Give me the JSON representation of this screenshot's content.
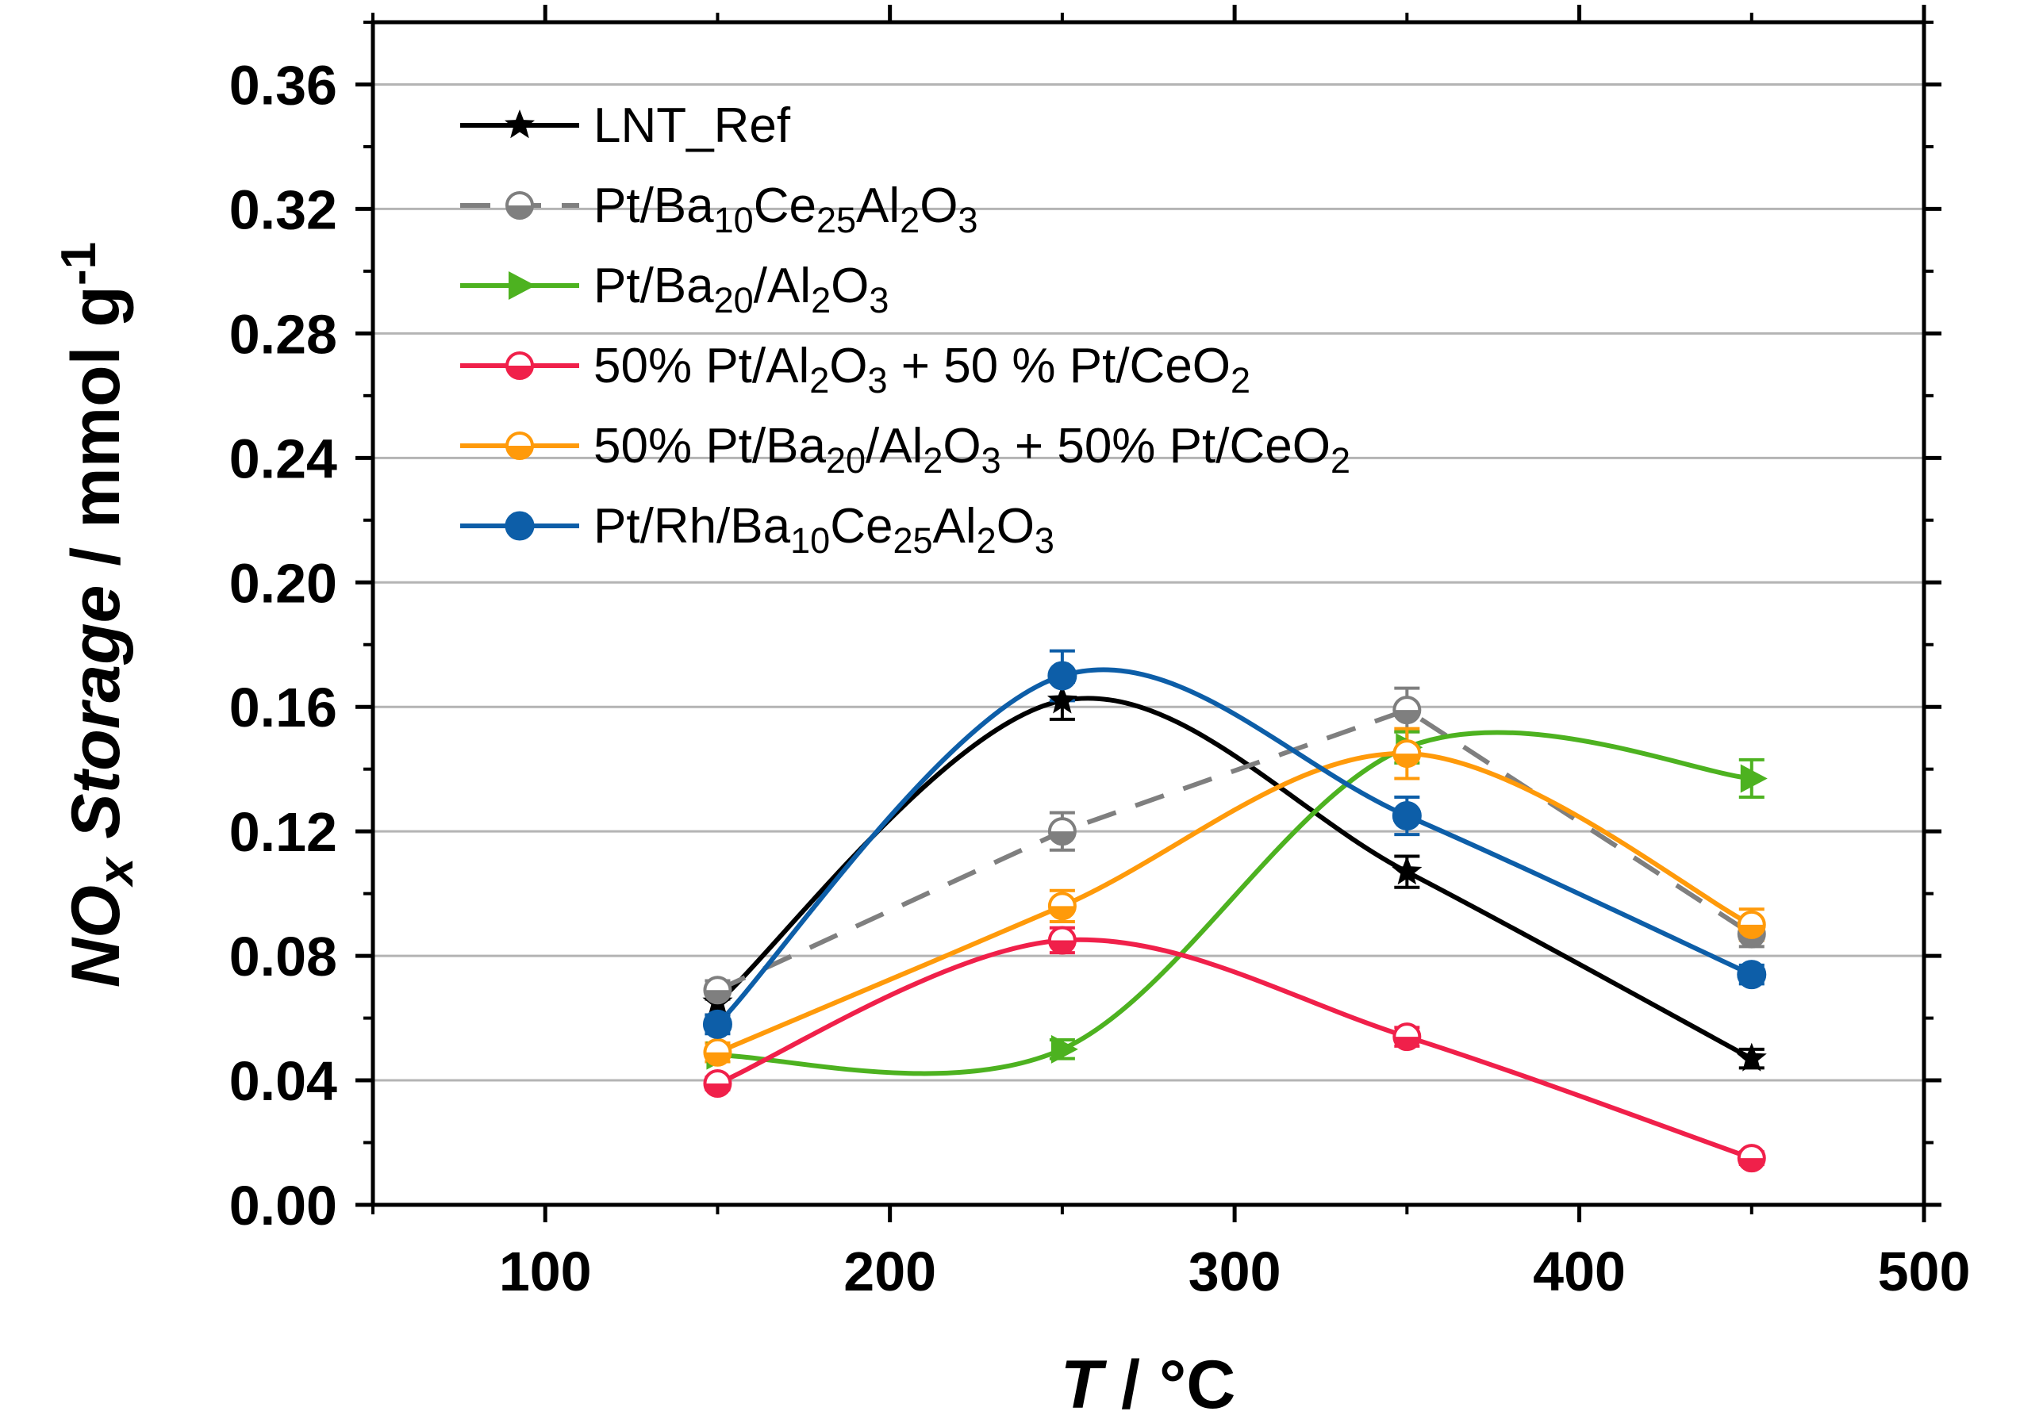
{
  "chart_data": {
    "type": "line",
    "title": "",
    "xlabel": "T / °C",
    "ylabel": "NOx Storage / mmol g-1",
    "xlim": [
      50,
      500
    ],
    "ylim": [
      0.0,
      0.38
    ],
    "xticks": [
      "100",
      "200",
      "300",
      "400",
      "500"
    ],
    "yticks": [
      "0.00",
      "0.04",
      "0.08",
      "0.12",
      "0.16",
      "0.20",
      "0.24",
      "0.28",
      "0.32",
      "0.36"
    ],
    "grid": "horizontal",
    "legend_position": "top-left",
    "series": [
      {
        "name": "LNT_Ref",
        "color": "#000000",
        "marker": "star",
        "dashed": false,
        "x": [
          150,
          250,
          350,
          450
        ],
        "y": [
          0.065,
          0.162,
          0.107,
          0.047
        ],
        "err": [
          0.004,
          0.006,
          0.005,
          0.003
        ]
      },
      {
        "name": "Pt/Ba10Ce25Al2O3",
        "color": "#7f7f7f",
        "marker": "half-circle",
        "dashed": true,
        "x": [
          150,
          250,
          350,
          450
        ],
        "y": [
          0.069,
          0.12,
          0.159,
          0.087
        ],
        "err": [
          0.003,
          0.006,
          0.007,
          0.004
        ]
      },
      {
        "name": "Pt/Ba20/Al2O3",
        "color": "#4db220",
        "marker": "triangle-right",
        "dashed": false,
        "x": [
          150,
          250,
          350,
          450
        ],
        "y": [
          0.048,
          0.05,
          0.147,
          0.137
        ],
        "err": [
          0.002,
          0.003,
          0.005,
          0.006
        ]
      },
      {
        "name": "50% Pt/Al2O3 + 50 % Pt/CeO2",
        "color": "#f0204a",
        "marker": "half-circle",
        "dashed": false,
        "x": [
          150,
          250,
          350,
          450
        ],
        "y": [
          0.039,
          0.085,
          0.054,
          0.015
        ],
        "err": [
          0.002,
          0.004,
          0.003,
          0.002
        ]
      },
      {
        "name": "50% Pt/Ba20/Al2O3 + 50% Pt/CeO2",
        "color": "#ff9a0a",
        "marker": "half-circle",
        "dashed": false,
        "x": [
          150,
          250,
          350,
          450
        ],
        "y": [
          0.049,
          0.096,
          0.145,
          0.09
        ],
        "err": [
          0.003,
          0.005,
          0.008,
          0.005
        ]
      },
      {
        "name": "Pt/Rh/Ba10Ce25Al2O3",
        "color": "#0d5ea8",
        "marker": "circle",
        "dashed": false,
        "x": [
          150,
          250,
          350,
          450
        ],
        "y": [
          0.058,
          0.17,
          0.125,
          0.074
        ],
        "err": [
          0.003,
          0.008,
          0.006,
          0.003
        ]
      }
    ],
    "legend": [
      {
        "base": "LNT_Ref",
        "parts": [
          {
            "t": "LNT_Ref"
          }
        ]
      },
      {
        "base": "Pt/Ba10Ce25Al2O3",
        "parts": [
          {
            "t": "Pt/Ba"
          },
          {
            "t": "10",
            "sub": true
          },
          {
            "t": "Ce"
          },
          {
            "t": "25",
            "sub": true
          },
          {
            "t": "Al"
          },
          {
            "t": "2",
            "sub": true
          },
          {
            "t": "O"
          },
          {
            "t": "3",
            "sub": true
          }
        ]
      },
      {
        "base": "Pt/Ba20/Al2O3",
        "parts": [
          {
            "t": "Pt/Ba"
          },
          {
            "t": "20",
            "sub": true
          },
          {
            "t": "/Al"
          },
          {
            "t": "2",
            "sub": true
          },
          {
            "t": "O"
          },
          {
            "t": "3",
            "sub": true
          }
        ]
      },
      {
        "base": "50% Pt/Al2O3 + 50 % Pt/CeO2",
        "parts": [
          {
            "t": "50% Pt/Al"
          },
          {
            "t": "2",
            "sub": true
          },
          {
            "t": "O"
          },
          {
            "t": "3",
            "sub": true
          },
          {
            "t": " + 50 % Pt/CeO"
          },
          {
            "t": "2",
            "sub": true
          }
        ]
      },
      {
        "base": "50% Pt/Ba20/Al2O3 + 50% Pt/CeO2",
        "parts": [
          {
            "t": "50% Pt/Ba"
          },
          {
            "t": "20",
            "sub": true
          },
          {
            "t": "/Al"
          },
          {
            "t": "2",
            "sub": true
          },
          {
            "t": "O"
          },
          {
            "t": "3",
            "sub": true
          },
          {
            "t": " + 50% Pt/CeO"
          },
          {
            "t": "2",
            "sub": true
          }
        ]
      },
      {
        "base": "Pt/Rh/Ba10Ce25Al2O3",
        "parts": [
          {
            "t": "Pt/Rh/Ba"
          },
          {
            "t": "10",
            "sub": true
          },
          {
            "t": "Ce"
          },
          {
            "t": "25",
            "sub": true
          },
          {
            "t": "Al"
          },
          {
            "t": "2",
            "sub": true
          },
          {
            "t": "O"
          },
          {
            "t": "3",
            "sub": true
          }
        ]
      }
    ],
    "ylabel_parts": [
      {
        "t": "NO",
        "italic": true
      },
      {
        "t": "x",
        "italic": true,
        "sub": true
      },
      {
        "t": " Storage",
        "italic": true
      },
      {
        "t": " / mmol g"
      },
      {
        "t": "-1",
        "sup": true
      }
    ],
    "xlabel_parts": [
      {
        "t": "T",
        "italic": true
      },
      {
        "t": " / °C"
      }
    ]
  }
}
